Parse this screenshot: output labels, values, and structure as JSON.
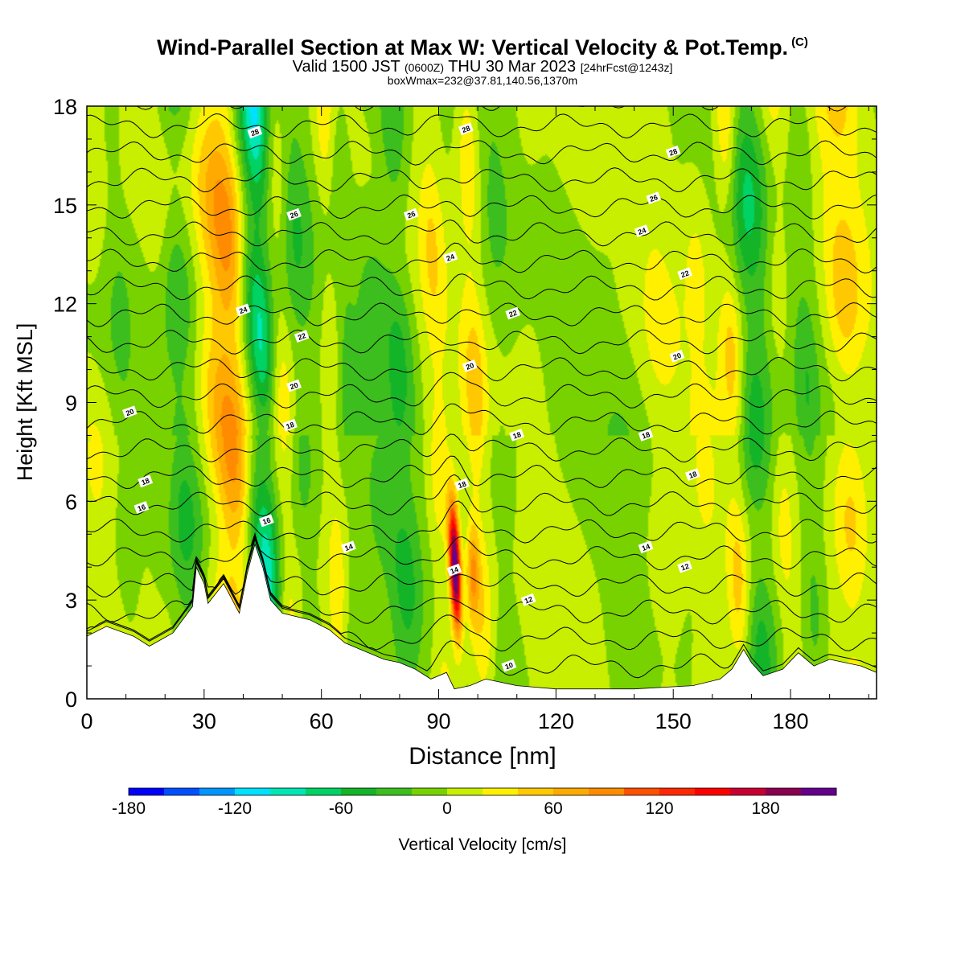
{
  "header": {
    "title": "Wind-Parallel Section at Max W: Vertical Velocity & Pot.Temp.",
    "copyright": "(C)",
    "valid_prefix": "Valid 1500 JST",
    "valid_utc": "(0600Z)",
    "valid_date": "THU 30 Mar 2023",
    "forecast": "[24hrFcst@1243z]",
    "boxwmax": "boxWmax=232@37.81,140.56,1370m"
  },
  "chart_data": {
    "type": "heatmap",
    "xlabel": "Distance [nm]",
    "ylabel": "Height [Kft MSL]",
    "xlim": [
      0,
      202
    ],
    "ylim": [
      0,
      18
    ],
    "x_ticks": [
      0,
      30,
      60,
      90,
      120,
      150,
      180
    ],
    "y_ticks": [
      0,
      3,
      6,
      9,
      12,
      15,
      18
    ],
    "colorbar": {
      "label": "Vertical Velocity [cm/s]",
      "min": -180,
      "max": 220,
      "step": 20,
      "tick_values": [
        -180,
        -120,
        -60,
        0,
        60,
        120,
        180
      ],
      "colors": [
        "#0000ff",
        "#0050ff",
        "#0096ff",
        "#00e0ff",
        "#00e6b4",
        "#00d264",
        "#14b428",
        "#3cbe1e",
        "#78d200",
        "#c8ee00",
        "#fff000",
        "#ffc800",
        "#ffaa00",
        "#ff8c00",
        "#ff5000",
        "#ff2800",
        "#ff0000",
        "#c80032",
        "#8c0050",
        "#64008c"
      ]
    },
    "w_bands": [
      {
        "x": 3,
        "w": 5,
        "v": 20
      },
      {
        "x": 10,
        "w": 4,
        "v": -15
      },
      {
        "x": 13,
        "w": 3,
        "v": 5
      },
      {
        "x": 20,
        "w": 3,
        "v": 10
      },
      {
        "x": 25,
        "w": 5,
        "v": -40
      },
      {
        "x": 34,
        "w": 5,
        "v": 45
      },
      {
        "x": 38,
        "w": 4,
        "v": 60
      },
      {
        "x": 43,
        "w": 3,
        "v": -40
      },
      {
        "x": 46,
        "w": 3,
        "v": -70
      },
      {
        "x": 51,
        "w": 3,
        "v": 30
      },
      {
        "x": 55,
        "w": 4,
        "v": -30
      },
      {
        "x": 64,
        "w": 3,
        "v": 40
      },
      {
        "x": 66,
        "w": 3,
        "v": -30
      },
      {
        "x": 75,
        "w": 5,
        "v": -20
      },
      {
        "x": 81,
        "w": 4,
        "v": -40
      },
      {
        "x": 90,
        "w": 3,
        "v": 30
      },
      {
        "x": 100,
        "w": 3,
        "v": 40
      },
      {
        "x": 106,
        "w": 4,
        "v": -15
      },
      {
        "x": 115,
        "w": 4,
        "v": 10
      },
      {
        "x": 138,
        "w": 6,
        "v": -10
      },
      {
        "x": 147,
        "w": 5,
        "v": 15
      },
      {
        "x": 158,
        "w": 4,
        "v": 20
      },
      {
        "x": 166,
        "w": 3,
        "v": 50
      },
      {
        "x": 171,
        "w": 5,
        "v": -50
      },
      {
        "x": 178,
        "w": 3,
        "v": 25
      },
      {
        "x": 185,
        "w": 3,
        "v": -25
      },
      {
        "x": 195,
        "w": 5,
        "v": 45
      }
    ],
    "updraft_max": {
      "x": 94,
      "y": 4.0,
      "value": 232
    },
    "contour_values": [
      10,
      12,
      14,
      16,
      16,
      18,
      18,
      20,
      20,
      22,
      24,
      24,
      26,
      26,
      28,
      28
    ],
    "contour_labels": [
      {
        "x": 108,
        "y": 1.0,
        "text": "10"
      },
      {
        "x": 113,
        "y": 3.0,
        "text": "12"
      },
      {
        "x": 153,
        "y": 4.0,
        "text": "12"
      },
      {
        "x": 67,
        "y": 4.6,
        "text": "14"
      },
      {
        "x": 94,
        "y": 3.9,
        "text": "14"
      },
      {
        "x": 143,
        "y": 4.6,
        "text": "14"
      },
      {
        "x": 46,
        "y": 5.4,
        "text": "16"
      },
      {
        "x": 14,
        "y": 5.8,
        "text": "16"
      },
      {
        "x": 15,
        "y": 6.6,
        "text": "18"
      },
      {
        "x": 96,
        "y": 6.5,
        "text": "18"
      },
      {
        "x": 155,
        "y": 6.8,
        "text": "18"
      },
      {
        "x": 52,
        "y": 8.3,
        "text": "18"
      },
      {
        "x": 110,
        "y": 8.0,
        "text": "18"
      },
      {
        "x": 143,
        "y": 8.0,
        "text": "18"
      },
      {
        "x": 11,
        "y": 8.7,
        "text": "20"
      },
      {
        "x": 53,
        "y": 9.5,
        "text": "20"
      },
      {
        "x": 98,
        "y": 10.1,
        "text": "20"
      },
      {
        "x": 151,
        "y": 10.4,
        "text": "20"
      },
      {
        "x": 55,
        "y": 11.0,
        "text": "22"
      },
      {
        "x": 109,
        "y": 11.7,
        "text": "22"
      },
      {
        "x": 153,
        "y": 12.9,
        "text": "22"
      },
      {
        "x": 40,
        "y": 11.8,
        "text": "24"
      },
      {
        "x": 93,
        "y": 13.4,
        "text": "24"
      },
      {
        "x": 142,
        "y": 14.2,
        "text": "24"
      },
      {
        "x": 53,
        "y": 14.7,
        "text": "26"
      },
      {
        "x": 83,
        "y": 14.7,
        "text": "26"
      },
      {
        "x": 145,
        "y": 15.2,
        "text": "26"
      },
      {
        "x": 43,
        "y": 17.2,
        "text": "28"
      },
      {
        "x": 97,
        "y": 17.3,
        "text": "28"
      },
      {
        "x": 150,
        "y": 16.6,
        "text": "28"
      }
    ],
    "terrain": [
      {
        "x": 0,
        "h": 1.9
      },
      {
        "x": 5,
        "h": 2.2
      },
      {
        "x": 12,
        "h": 1.9
      },
      {
        "x": 16,
        "h": 1.6
      },
      {
        "x": 22,
        "h": 2.0
      },
      {
        "x": 27,
        "h": 2.8
      },
      {
        "x": 28,
        "h": 4.0
      },
      {
        "x": 30,
        "h": 3.5
      },
      {
        "x": 31,
        "h": 2.9
      },
      {
        "x": 35,
        "h": 3.5
      },
      {
        "x": 39,
        "h": 2.6
      },
      {
        "x": 41,
        "h": 3.8
      },
      {
        "x": 43,
        "h": 4.7
      },
      {
        "x": 45,
        "h": 4.0
      },
      {
        "x": 47,
        "h": 3.0
      },
      {
        "x": 50,
        "h": 2.6
      },
      {
        "x": 57,
        "h": 2.4
      },
      {
        "x": 62,
        "h": 2.1
      },
      {
        "x": 66,
        "h": 1.7
      },
      {
        "x": 70,
        "h": 1.5
      },
      {
        "x": 76,
        "h": 1.2
      },
      {
        "x": 80,
        "h": 1.1
      },
      {
        "x": 84,
        "h": 0.9
      },
      {
        "x": 88,
        "h": 0.6
      },
      {
        "x": 92,
        "h": 0.8
      },
      {
        "x": 94,
        "h": 0.3
      },
      {
        "x": 98,
        "h": 0.4
      },
      {
        "x": 102,
        "h": 0.6
      },
      {
        "x": 110,
        "h": 0.4
      },
      {
        "x": 120,
        "h": 0.3
      },
      {
        "x": 140,
        "h": 0.3
      },
      {
        "x": 155,
        "h": 0.4
      },
      {
        "x": 162,
        "h": 0.6
      },
      {
        "x": 165,
        "h": 0.9
      },
      {
        "x": 168,
        "h": 1.5
      },
      {
        "x": 170,
        "h": 1.1
      },
      {
        "x": 173,
        "h": 0.7
      },
      {
        "x": 178,
        "h": 0.9
      },
      {
        "x": 182,
        "h": 1.4
      },
      {
        "x": 186,
        "h": 1.0
      },
      {
        "x": 190,
        "h": 1.2
      },
      {
        "x": 198,
        "h": 1.0
      },
      {
        "x": 202,
        "h": 0.8
      }
    ]
  }
}
